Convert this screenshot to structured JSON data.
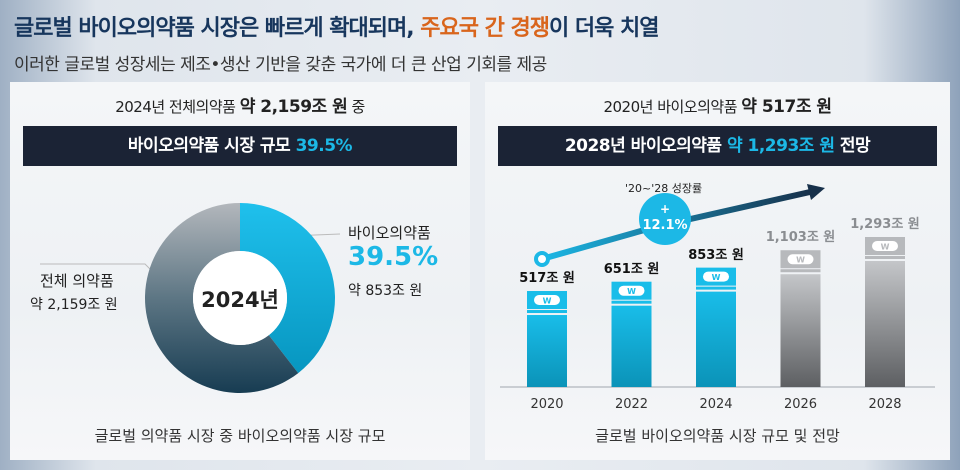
{
  "header": {
    "title_part1": "글로벌 바이오의약품 시장은 빠르게 확대되며, ",
    "title_highlight": "주요국 간 경쟁",
    "title_part2": "이 더욱 치열",
    "subtitle": "이러한 글로벌 성장세는 제조•생산 기반을 갖춘 국가에 더 큰 산업 기회를 제공"
  },
  "left": {
    "top_prefix": "2024년 전체의약품 ",
    "top_bold": "약 2,159조 원",
    "top_suffix": " 중",
    "bar_text": "바이오의약품 시장 규모 ",
    "bar_pct": "39.5%",
    "center": "2024년",
    "total_label": "전체 의약품",
    "total_value": "약 2,159조 원",
    "bio_label": "바이오의약품",
    "bio_pct": "39.5%",
    "bio_value": "약 853조 원",
    "caption": "글로벌 의약품 시장 중 바이오의약품 시장 규모"
  },
  "right": {
    "top_prefix": "2020년 바이오의약품 ",
    "top_bold": "약 517조 원",
    "bar_prefix": "2028년 바이오의약품 ",
    "bar_highlight": "약 1,293조 원",
    "bar_suffix": " 전망",
    "growth_label": "'20~'28 성장률",
    "growth_value": "12.1%",
    "growth_sign": "+",
    "caption": "글로벌 바이오의약품 시장 규모 및 전망"
  },
  "colors": {
    "blue": "#1cb8e6",
    "navy": "#1b2335",
    "orange": "#d9651c",
    "gray": "#9a9ea3"
  },
  "chart_data": [
    {
      "type": "pie",
      "title": "2024년",
      "slices": [
        {
          "name": "바이오의약품",
          "value": 39.5,
          "amount": "약 853조 원"
        },
        {
          "name": "전체 의약품 (기타)",
          "value": 60.5
        }
      ]
    },
    {
      "type": "bar",
      "categories": [
        "2020",
        "2022",
        "2024",
        "2026",
        "2028"
      ],
      "values": [
        517,
        651,
        853,
        1103,
        1293
      ],
      "labels": [
        "517조 원",
        "651조 원",
        "853조 원",
        "1,103조 원",
        "1,293조 원"
      ],
      "forecast": [
        false,
        false,
        false,
        true,
        true
      ],
      "unit": "조 원",
      "icon": "won-bill-icon"
    }
  ]
}
